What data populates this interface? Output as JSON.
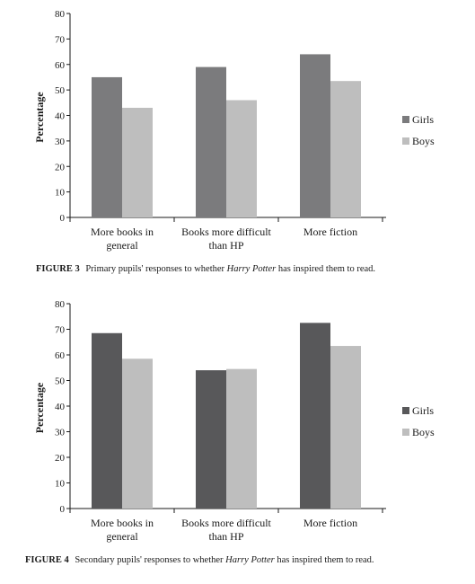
{
  "chart_data": [
    {
      "type": "bar",
      "categories": [
        "More books in general",
        "Books more difficult than HP",
        "More fiction"
      ],
      "category_lines": [
        [
          "More books in",
          "general"
        ],
        [
          "Books more difficult",
          "than HP"
        ],
        [
          "More fiction"
        ]
      ],
      "series": [
        {
          "name": "Girls",
          "values": [
            55,
            59,
            64
          ],
          "color": "#7b7b7d"
        },
        {
          "name": "Boys",
          "values": [
            43,
            46,
            53.5
          ],
          "color": "#bebebe"
        }
      ],
      "ylabel": "Percentage",
      "ylim": [
        0,
        80
      ],
      "yticks": [
        "0",
        "10",
        "20",
        "30",
        "40",
        "50",
        "60",
        "70",
        "80"
      ],
      "grid": false,
      "legend_position": "right",
      "caption": {
        "label": "FIGURE 3",
        "before": "Primary pupils' responses to whether",
        "title": "Harry Potter",
        "after": "has inspired them to read."
      }
    },
    {
      "type": "bar",
      "categories": [
        "More books in general",
        "Books more difficult than HP",
        "More fiction"
      ],
      "category_lines": [
        [
          "More books in",
          "general"
        ],
        [
          "Books more difficult",
          "than HP"
        ],
        [
          "More fiction"
        ]
      ],
      "series": [
        {
          "name": "Girls",
          "values": [
            68.5,
            54,
            72.5
          ],
          "color": "#58585a"
        },
        {
          "name": "Boys",
          "values": [
            58.5,
            54.5,
            63.5
          ],
          "color": "#bebebe"
        }
      ],
      "ylabel": "Percentage",
      "ylim": [
        0,
        80
      ],
      "yticks": [
        "0",
        "10",
        "20",
        "30",
        "40",
        "50",
        "60",
        "70",
        "80"
      ],
      "grid": false,
      "legend_position": "right",
      "caption": {
        "label": "FIGURE 4",
        "before": "Secondary pupils' responses to whether",
        "title": "Harry Potter",
        "after": "has inspired them to read."
      }
    }
  ]
}
